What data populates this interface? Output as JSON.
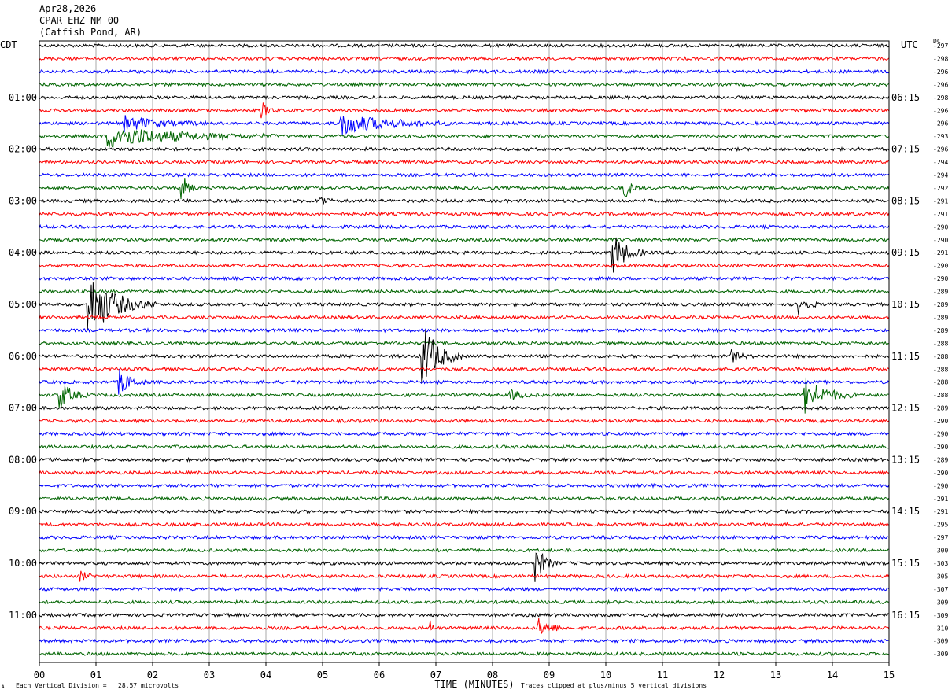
{
  "header": {
    "date": "Apr28,2026",
    "station": "CPAR EHZ NM 00",
    "location": "(Catfish Pond, AR)"
  },
  "left_tz": "CDT",
  "right_tz": "UTC",
  "dc_label": "DC",
  "footer": {
    "scale": "Each Vertical Division =   28.57 microvolts",
    "clip": "Traces clipped at plus/minus 5 vertical divisions",
    "corner_mark": "A"
  },
  "colors": {
    "trace_cycle": [
      "#000000",
      "#ff0000",
      "#0000ff",
      "#006400"
    ],
    "grid": "#aaaaaa",
    "frame": "#000000"
  },
  "chart_data": {
    "type": "line",
    "title": "",
    "xlabel": "TIME (MINUTES)",
    "ylabel": "",
    "xlim": [
      0,
      15
    ],
    "x_ticks": [
      "00",
      "01",
      "02",
      "03",
      "04",
      "05",
      "06",
      "07",
      "08",
      "09",
      "10",
      "11",
      "12",
      "13",
      "14",
      "15"
    ],
    "left_time_labels": [
      "01:00",
      "02:00",
      "03:00",
      "04:00",
      "05:00",
      "06:00",
      "07:00",
      "08:00",
      "09:00",
      "10:00",
      "11:00"
    ],
    "right_time_labels": [
      "06:15",
      "07:15",
      "08:15",
      "09:15",
      "10:15",
      "11:15",
      "12:15",
      "13:15",
      "14:15",
      "15:15",
      "16:15"
    ],
    "trace_dc_offsets": [
      "-297",
      "-298",
      "-296",
      "-296",
      "-298",
      "-296",
      "-296",
      "-293",
      "-296",
      "-294",
      "-294",
      "-292",
      "-291",
      "-291",
      "-290",
      "-290",
      "-291",
      "-290",
      "-290",
      "-289",
      "-289",
      "-289",
      "-289",
      "-288",
      "-288",
      "-288",
      "-288",
      "-288",
      "-289",
      "-290",
      "-290",
      "-290",
      "-289",
      "-290",
      "-290",
      "-291",
      "-291",
      "-295",
      "-297",
      "-300",
      "-303",
      "-305",
      "-307",
      "-309",
      "-309",
      "-310",
      "-309",
      "-309"
    ],
    "events": [
      {
        "trace": 5,
        "x": 3.9,
        "amp": 0.8,
        "len": 0.3
      },
      {
        "trace": 6,
        "x": 5.3,
        "amp": 0.9,
        "len": 2.0
      },
      {
        "trace": 6,
        "x": 1.5,
        "amp": 0.6,
        "len": 1.5
      },
      {
        "trace": 7,
        "x": 1.2,
        "amp": 0.9,
        "len": 3.0
      },
      {
        "trace": 11,
        "x": 2.5,
        "amp": 1.3,
        "len": 0.3
      },
      {
        "trace": 11,
        "x": 10.3,
        "amp": 1.1,
        "len": 0.3
      },
      {
        "trace": 12,
        "x": 4.95,
        "amp": 0.6,
        "len": 0.25
      },
      {
        "trace": 16,
        "x": 10.1,
        "amp": 1.9,
        "len": 0.6
      },
      {
        "trace": 20,
        "x": 0.85,
        "amp": 2.6,
        "len": 1.2
      },
      {
        "trace": 20,
        "x": 13.4,
        "amp": 0.8,
        "len": 0.4
      },
      {
        "trace": 24,
        "x": 6.75,
        "amp": 2.9,
        "len": 0.7
      },
      {
        "trace": 24,
        "x": 12.2,
        "amp": 0.5,
        "len": 0.4
      },
      {
        "trace": 26,
        "x": 1.4,
        "amp": 1.1,
        "len": 0.5
      },
      {
        "trace": 27,
        "x": 0.35,
        "amp": 1.3,
        "len": 0.5
      },
      {
        "trace": 27,
        "x": 13.5,
        "amp": 1.5,
        "len": 0.9
      },
      {
        "trace": 27,
        "x": 8.3,
        "amp": 0.4,
        "len": 0.5
      },
      {
        "trace": 40,
        "x": 8.75,
        "amp": 1.6,
        "len": 0.4
      },
      {
        "trace": 41,
        "x": 0.7,
        "amp": 0.4,
        "len": 0.4
      },
      {
        "trace": 45,
        "x": 8.8,
        "amp": 0.7,
        "len": 0.6
      },
      {
        "trace": 45,
        "x": 6.9,
        "amp": 0.7,
        "len": 0.1
      }
    ]
  }
}
